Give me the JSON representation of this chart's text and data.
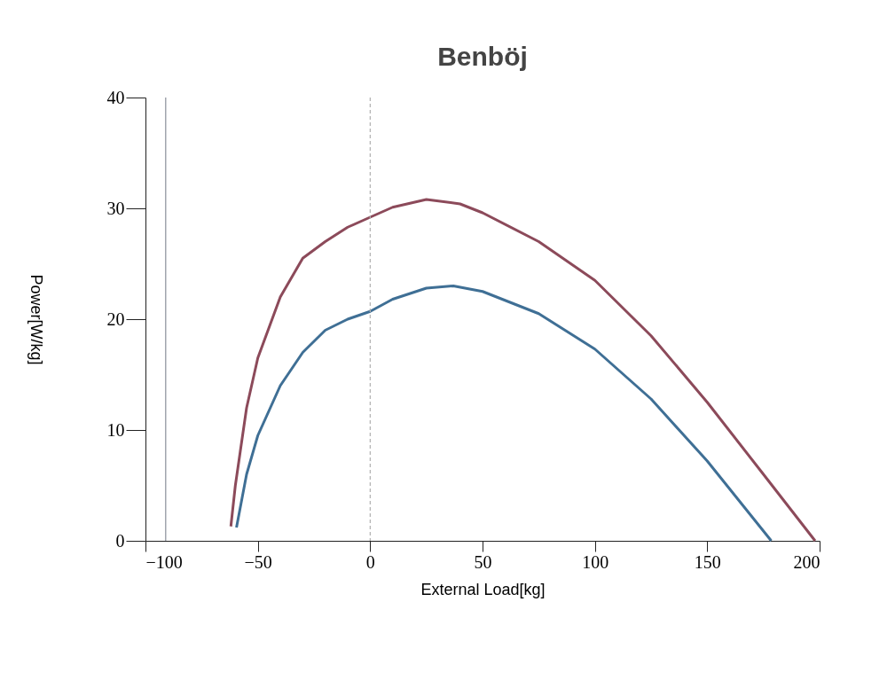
{
  "chart_data": {
    "type": "line",
    "title": "Benböj",
    "xlabel": "External Load[kg]",
    "ylabel": "Power[W/kg]",
    "xlim": [
      -100,
      200
    ],
    "xticks": [
      -100,
      -50,
      0,
      50,
      100,
      150,
      200
    ],
    "ylim": [
      0,
      40
    ],
    "yticks": [
      0,
      10,
      20,
      30,
      40
    ],
    "grid": false,
    "marker": "none",
    "line_style": "solid",
    "series": [
      {
        "color": "#8c4a5a",
        "x": [
          -62,
          -60,
          -55,
          -50,
          -40,
          -30,
          -20,
          -10,
          0,
          10,
          25,
          40,
          50,
          75,
          100,
          125,
          150,
          175,
          198
        ],
        "values": [
          1.3,
          5,
          12,
          16.5,
          22,
          25.5,
          27,
          28.3,
          29.2,
          30.1,
          30.8,
          30.4,
          29.6,
          27,
          23.5,
          18.5,
          12.5,
          6,
          0
        ]
      },
      {
        "color": "#3f6f95",
        "x": [
          -59.5,
          -55,
          -50,
          -40,
          -30,
          -20,
          -10,
          0,
          10,
          25,
          37,
          50,
          75,
          100,
          125,
          150,
          178.5
        ],
        "values": [
          1.2,
          6,
          9.5,
          14,
          17,
          19,
          20,
          20.7,
          21.8,
          22.8,
          23,
          22.5,
          20.5,
          17.3,
          12.8,
          7.2,
          0
        ]
      }
    ],
    "ref_lines": [
      {
        "axis": "x",
        "value": -91,
        "color": "#8a8f9a",
        "line_style": "solid"
      },
      {
        "axis": "x",
        "value": 0,
        "color": "#b0b0b0",
        "line_style": "dashed"
      }
    ]
  }
}
